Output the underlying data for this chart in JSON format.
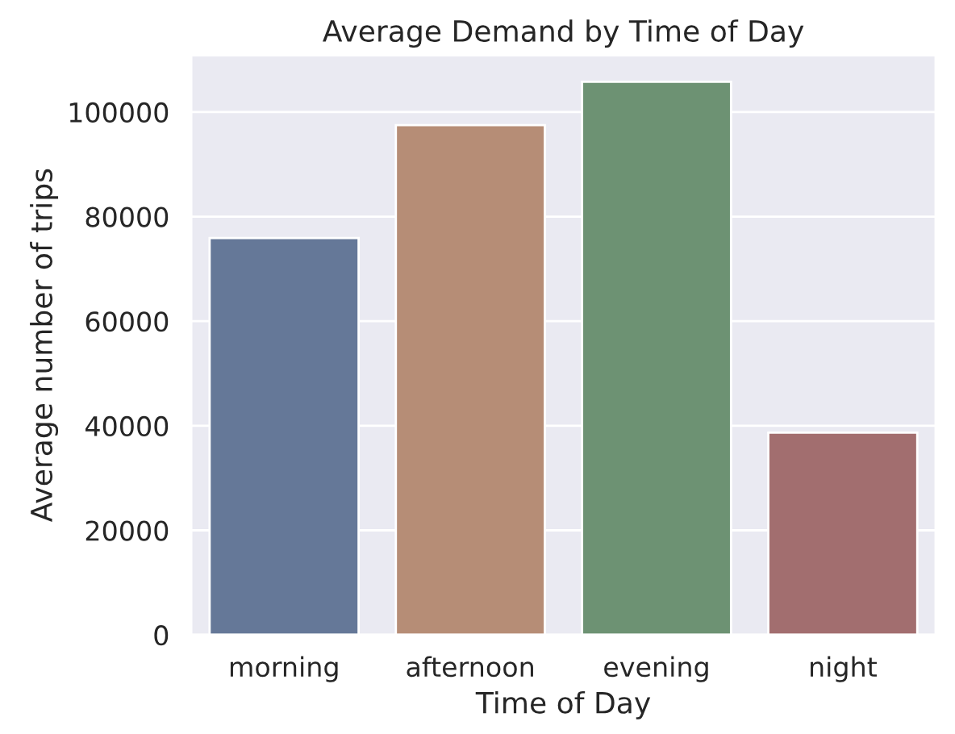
{
  "chart_data": {
    "type": "bar",
    "title": "Average Demand by Time of Day",
    "xlabel": "Time of Day",
    "ylabel": "Average number of trips",
    "categories": [
      "morning",
      "afternoon",
      "evening",
      "night"
    ],
    "values": [
      75900,
      97500,
      105800,
      38700
    ],
    "colors": [
      "#5d76a0",
      "#c18a6b",
      "#67986f",
      "#ab6567"
    ],
    "ylim": [
      0,
      110900
    ],
    "yticks": [
      0,
      20000,
      40000,
      60000,
      80000,
      100000
    ],
    "grid": "y"
  }
}
